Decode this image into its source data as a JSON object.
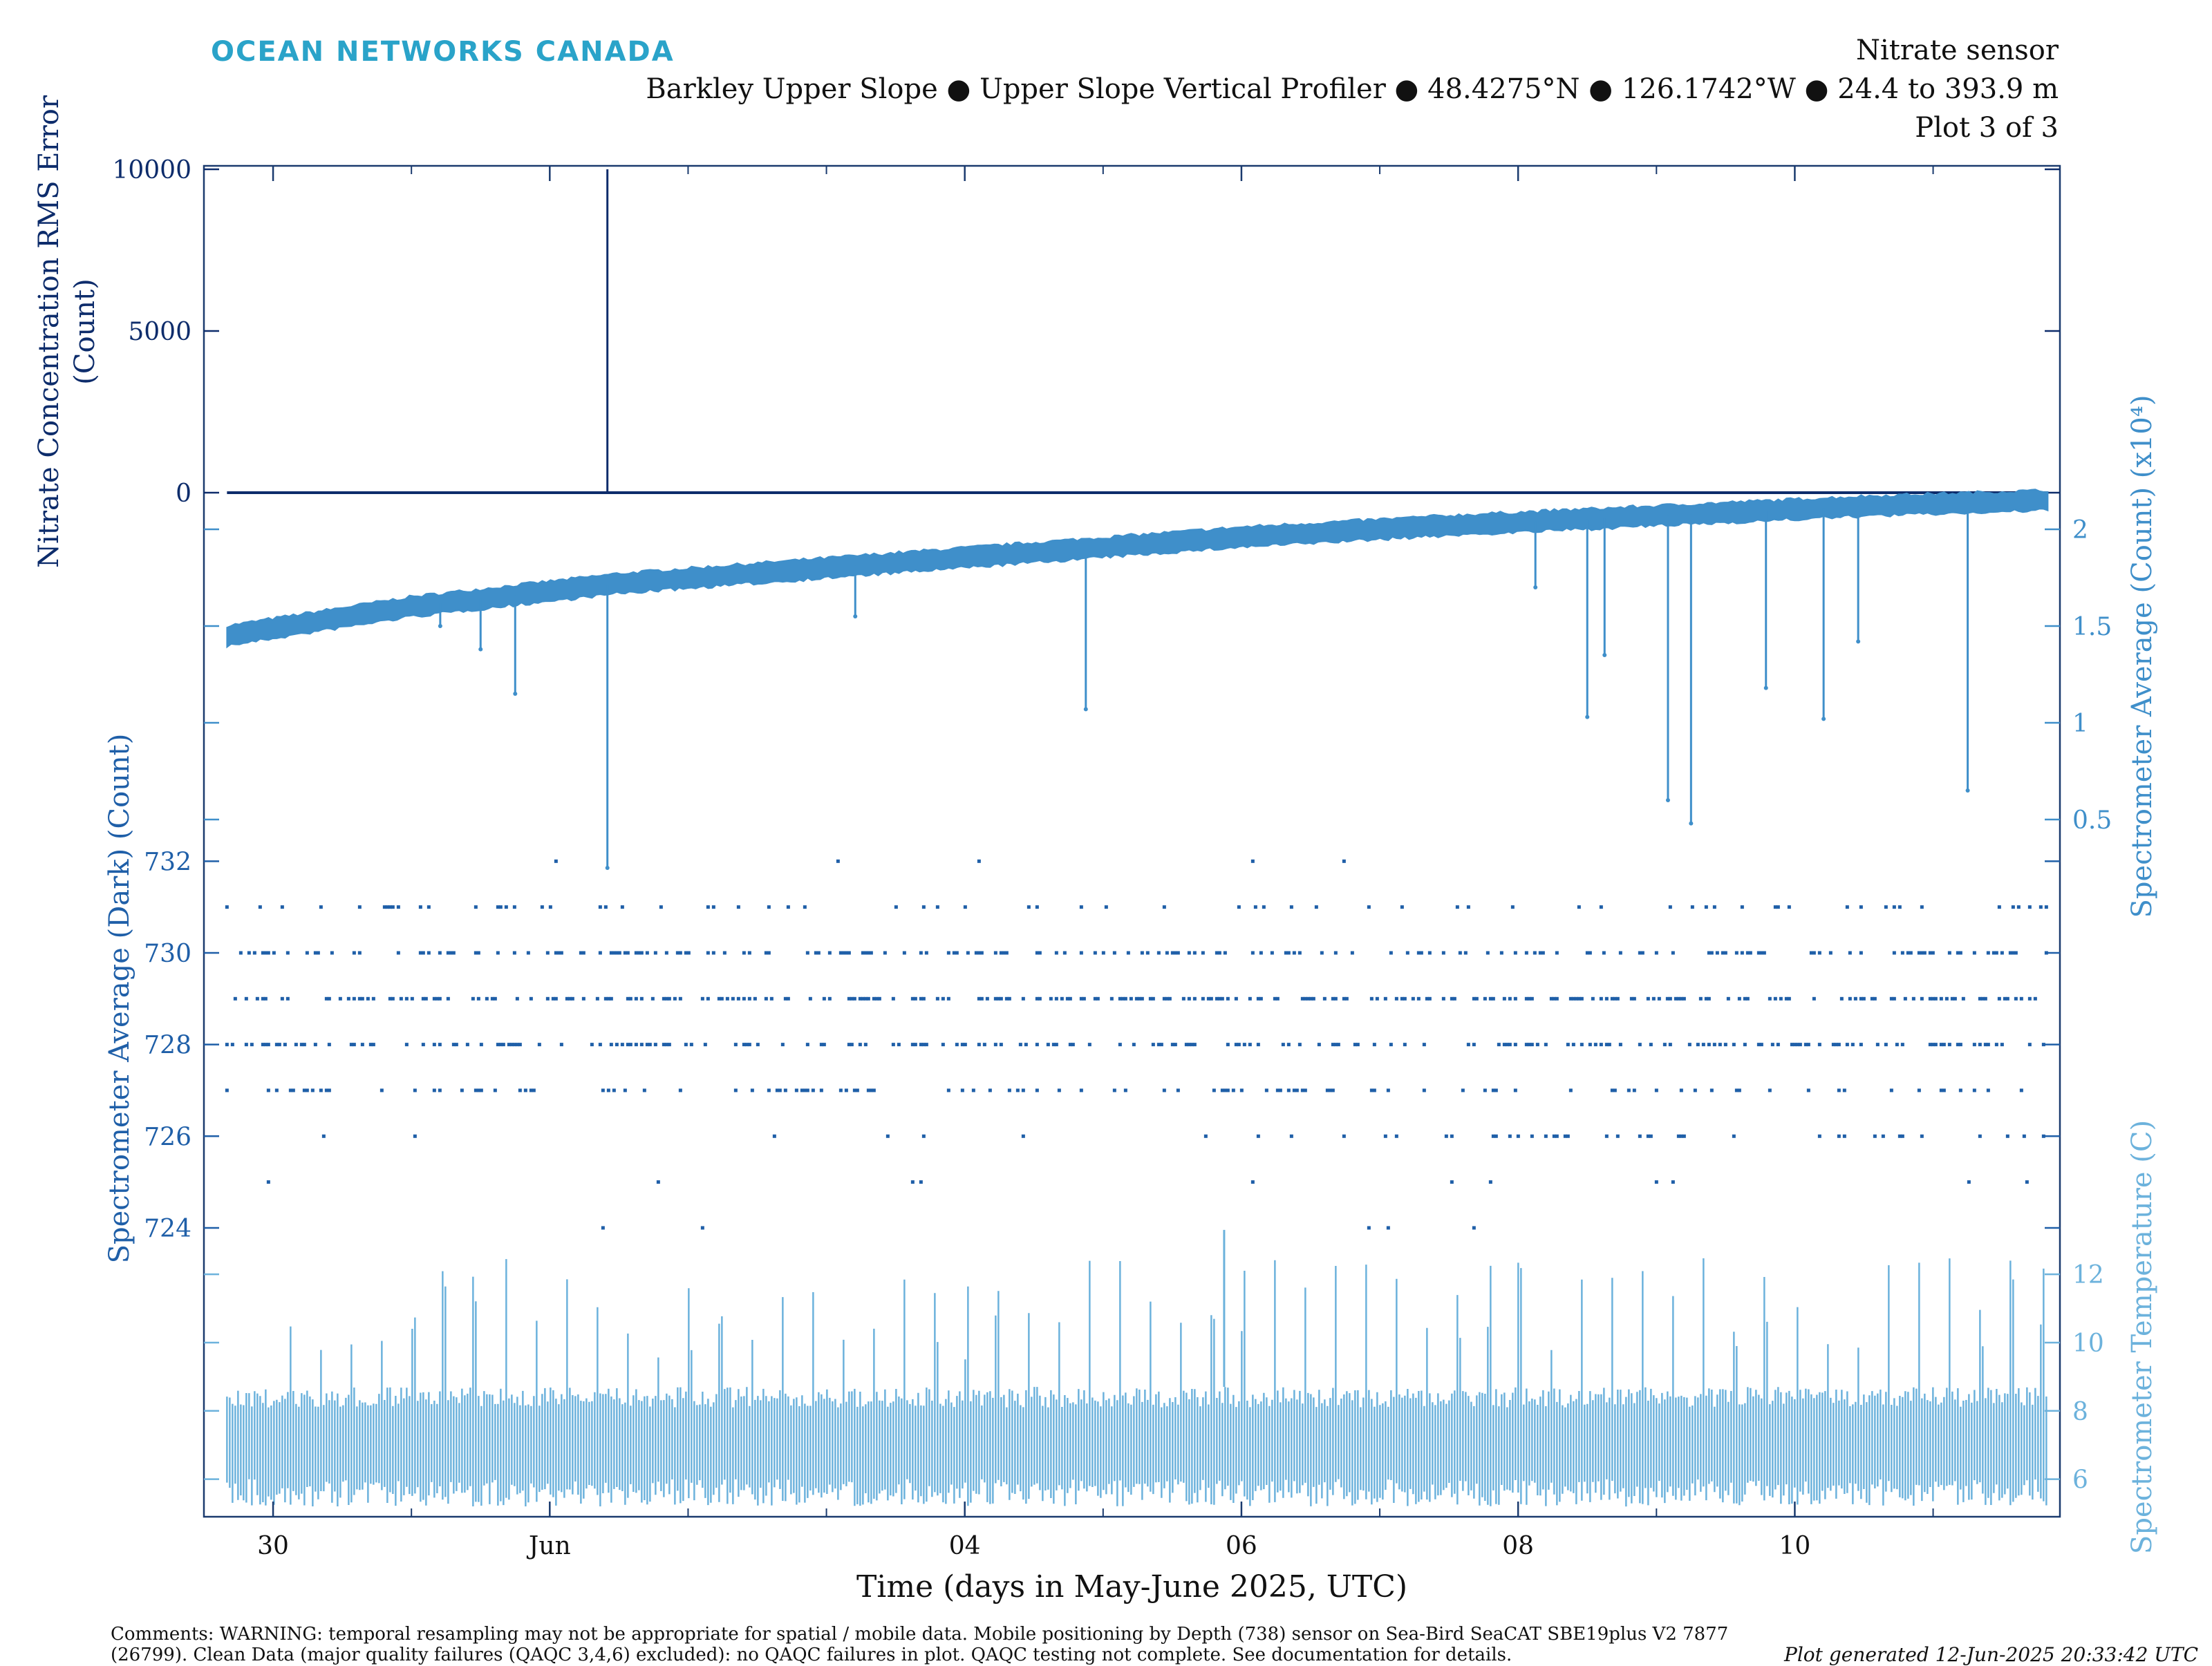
{
  "header": {
    "brand": "OCEAN NETWORKS CANADA",
    "line1": "Nitrate sensor",
    "line2": "Barkley Upper Slope ● Upper Slope Vertical Profiler ● 48.4275°N ● 126.1742°W ● 24.4 to 393.9 m",
    "line3": "Plot 3 of 3"
  },
  "footer": {
    "comments": "Comments: WARNING: temporal resampling may not be appropriate for spatial / mobile data. Mobile positioning by Depth (738) sensor on Sea-Bird SeaCAT SBE19plus V2 7877 (26799). Clean Data (major quality failures (QAQC 3,4,6) excluded): no QAQC failures in plot. QAQC testing not complete. See documentation for details.",
    "generated": "Plot generated 12-Jun-2025 20:33:42 UTC"
  },
  "colors": {
    "rms": "#0d2c6b",
    "dark": "#1f5fa8",
    "avg": "#3f8fca",
    "temp": "#6cb2dc",
    "axis": "#1a3a6e",
    "brand": "#2aa3c9"
  },
  "chart_data": {
    "type": "line",
    "xlabel": "Time (days in May-June 2025, UTC)",
    "x_range": [
      "2025-05-29T12:00",
      "2025-06-11T22:00"
    ],
    "x_ticks": [
      {
        "t": "2025-05-30",
        "label": "30"
      },
      {
        "t": "2025-06-01",
        "label": "Jun"
      },
      {
        "t": "2025-06-04",
        "label": "04"
      },
      {
        "t": "2025-06-06",
        "label": "06"
      },
      {
        "t": "2025-06-08",
        "label": "08"
      },
      {
        "t": "2025-06-10",
        "label": "10"
      }
    ],
    "x_minor_ticks": [
      "2025-05-31",
      "2025-06-02",
      "2025-06-03",
      "2025-06-05",
      "2025-06-07",
      "2025-06-09",
      "2025-06-11"
    ],
    "series": [
      {
        "name": "Nitrate Concentration RMS Error",
        "ylabel": "Nitrate Concentration RMS Error (Count)",
        "axis": "left",
        "ylim": [
          0,
          10000
        ],
        "y_ticks": [
          0,
          5000,
          10000
        ],
        "baseline": 0,
        "spikes": [
          {
            "t": "2025-06-01T10:00",
            "value": 10000
          }
        ]
      },
      {
        "name": "Spectrometer Average",
        "ylabel": "Spectrometer Average (Count) (x10⁴)",
        "axis": "right",
        "ylim": [
          0.2,
          2.2
        ],
        "y_ticks": [
          0.5,
          1,
          1.5,
          2
        ],
        "band": [
          {
            "t": "2025-05-29T16:00",
            "y": 1.45
          },
          {
            "t": "2025-05-31T00:00",
            "y": 1.6
          },
          {
            "t": "2025-06-01T12:00",
            "y": 1.72
          },
          {
            "t": "2025-06-03T00:00",
            "y": 1.8
          },
          {
            "t": "2025-06-04T12:00",
            "y": 1.88
          },
          {
            "t": "2025-06-06T00:00",
            "y": 1.96
          },
          {
            "t": "2025-06-07T12:00",
            "y": 2.02
          },
          {
            "t": "2025-06-09T00:00",
            "y": 2.07
          },
          {
            "t": "2025-06-10T12:00",
            "y": 2.12
          },
          {
            "t": "2025-06-11T20:00",
            "y": 2.15
          }
        ],
        "band_width": 0.12,
        "drops": [
          {
            "t": "2025-05-31T05:00",
            "y": 1.5
          },
          {
            "t": "2025-05-31T12:00",
            "y": 1.38
          },
          {
            "t": "2025-05-31T18:00",
            "y": 1.15
          },
          {
            "t": "2025-06-01T10:00",
            "y": 0.25
          },
          {
            "t": "2025-06-03T05:00",
            "y": 1.55
          },
          {
            "t": "2025-06-04T21:00",
            "y": 1.07
          },
          {
            "t": "2025-06-08T03:00",
            "y": 1.7
          },
          {
            "t": "2025-06-08T12:00",
            "y": 1.03
          },
          {
            "t": "2025-06-08T15:00",
            "y": 1.35
          },
          {
            "t": "2025-06-09T02:00",
            "y": 0.6
          },
          {
            "t": "2025-06-09T06:00",
            "y": 0.48
          },
          {
            "t": "2025-06-09T19:00",
            "y": 1.18
          },
          {
            "t": "2025-06-10T05:00",
            "y": 1.02
          },
          {
            "t": "2025-06-10T11:00",
            "y": 1.42
          },
          {
            "t": "2025-06-11T06:00",
            "y": 0.65
          }
        ]
      },
      {
        "name": "Spectrometer Average (Dark)",
        "ylabel": "Spectrometer Average (Dark) (Count)",
        "axis": "left",
        "ylim": [
          723.2,
          733
        ],
        "y_ticks": [
          724,
          726,
          728,
          730,
          732
        ],
        "levels": [
          724,
          725,
          726,
          727,
          728,
          729,
          730,
          731,
          732
        ]
      },
      {
        "name": "Spectrometer Temperature",
        "ylabel": "Spectrometer Temperature (C)",
        "axis": "right",
        "ylim": [
          5,
          13.5
        ],
        "y_ticks": [
          6,
          8,
          10,
          12
        ],
        "base_range": [
          5.2,
          8.7
        ],
        "peak_range": [
          9.5,
          12.5
        ],
        "max_spike": {
          "t": "2025-06-05T21:00",
          "value": 13.3
        }
      }
    ]
  }
}
